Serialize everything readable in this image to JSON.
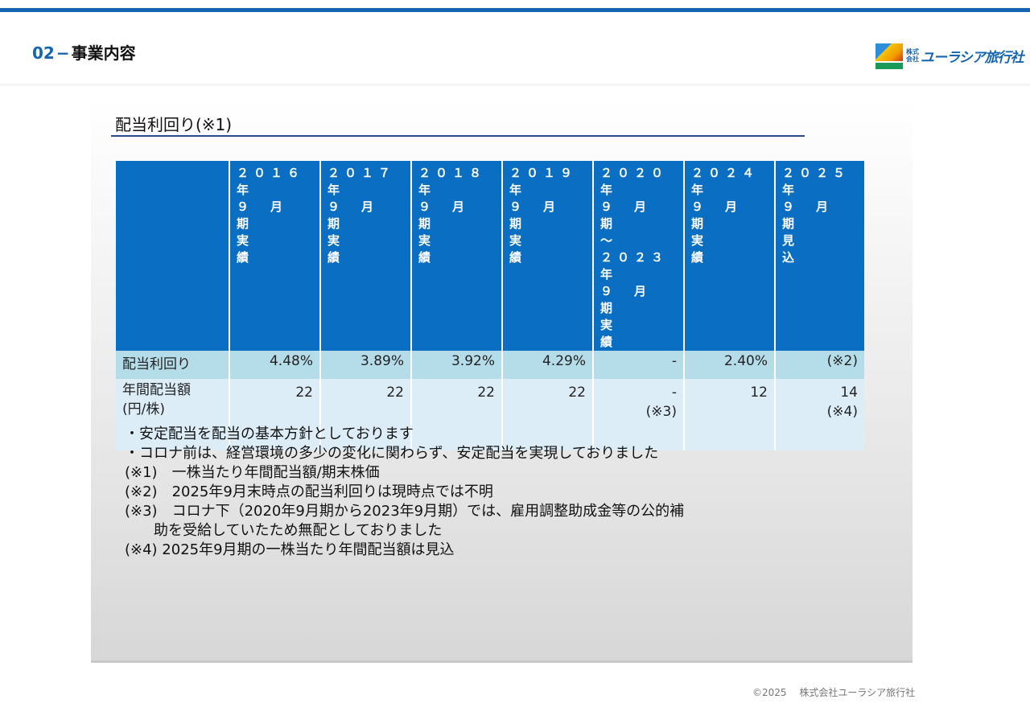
{
  "header": {
    "number": "02",
    "dash": "−",
    "title": "事業内容"
  },
  "logo": {
    "small": "株式会社",
    "name": "ユーラシア旅行社"
  },
  "section": {
    "title": "配当利回り(※1)"
  },
  "table": {
    "columns": [
      "２０１６年\n９　月　期\n実　　　績",
      "２０１７年\n９　月　期\n実　　　績",
      "２０１８年\n９　月　期\n実　　　績",
      "２０１９年\n９　月　期\n実　　　績",
      "２０２０年\n９　月　期\n～\n２０２３年\n９　月　期\n実　　　績",
      "２０２４年\n９　月　期\n実　　　績",
      "２０２５年\n９　月　期\n見　　　込"
    ],
    "row1": {
      "label": "配当利回り",
      "values": [
        "4.48%",
        "3.89%",
        "3.92%",
        "4.29%",
        "-",
        "2.40%",
        "(※2)"
      ]
    },
    "row2": {
      "label": "年間配当額",
      "label_sub": "(円/株)",
      "values": [
        "22",
        "22",
        "22",
        "22",
        "-",
        "12",
        "14"
      ],
      "subs": [
        "",
        "",
        "",
        "",
        "(※3)",
        "",
        "(※4)"
      ]
    }
  },
  "notes": [
    "・安定配当を配当の基本方針としております",
    "・コロナ前は、経営環境の多少の変化に関わらず、安定配当を実現しておりました",
    "(※1)　一株当たり年間配当額/期末株価",
    "(※2)　2025年9月末時点の配当利回りは現時点では不明",
    "(※3)　コロナ下（2020年9月期から2023年9月期）では、雇用調整助成金等の公的補",
    "　　助を受給していたため無配としておりました",
    "(※4) 2025年9月期の一株当たり年間配当額は見込"
  ],
  "footer": "©2025　 株式会社ユーラシア旅行社"
}
